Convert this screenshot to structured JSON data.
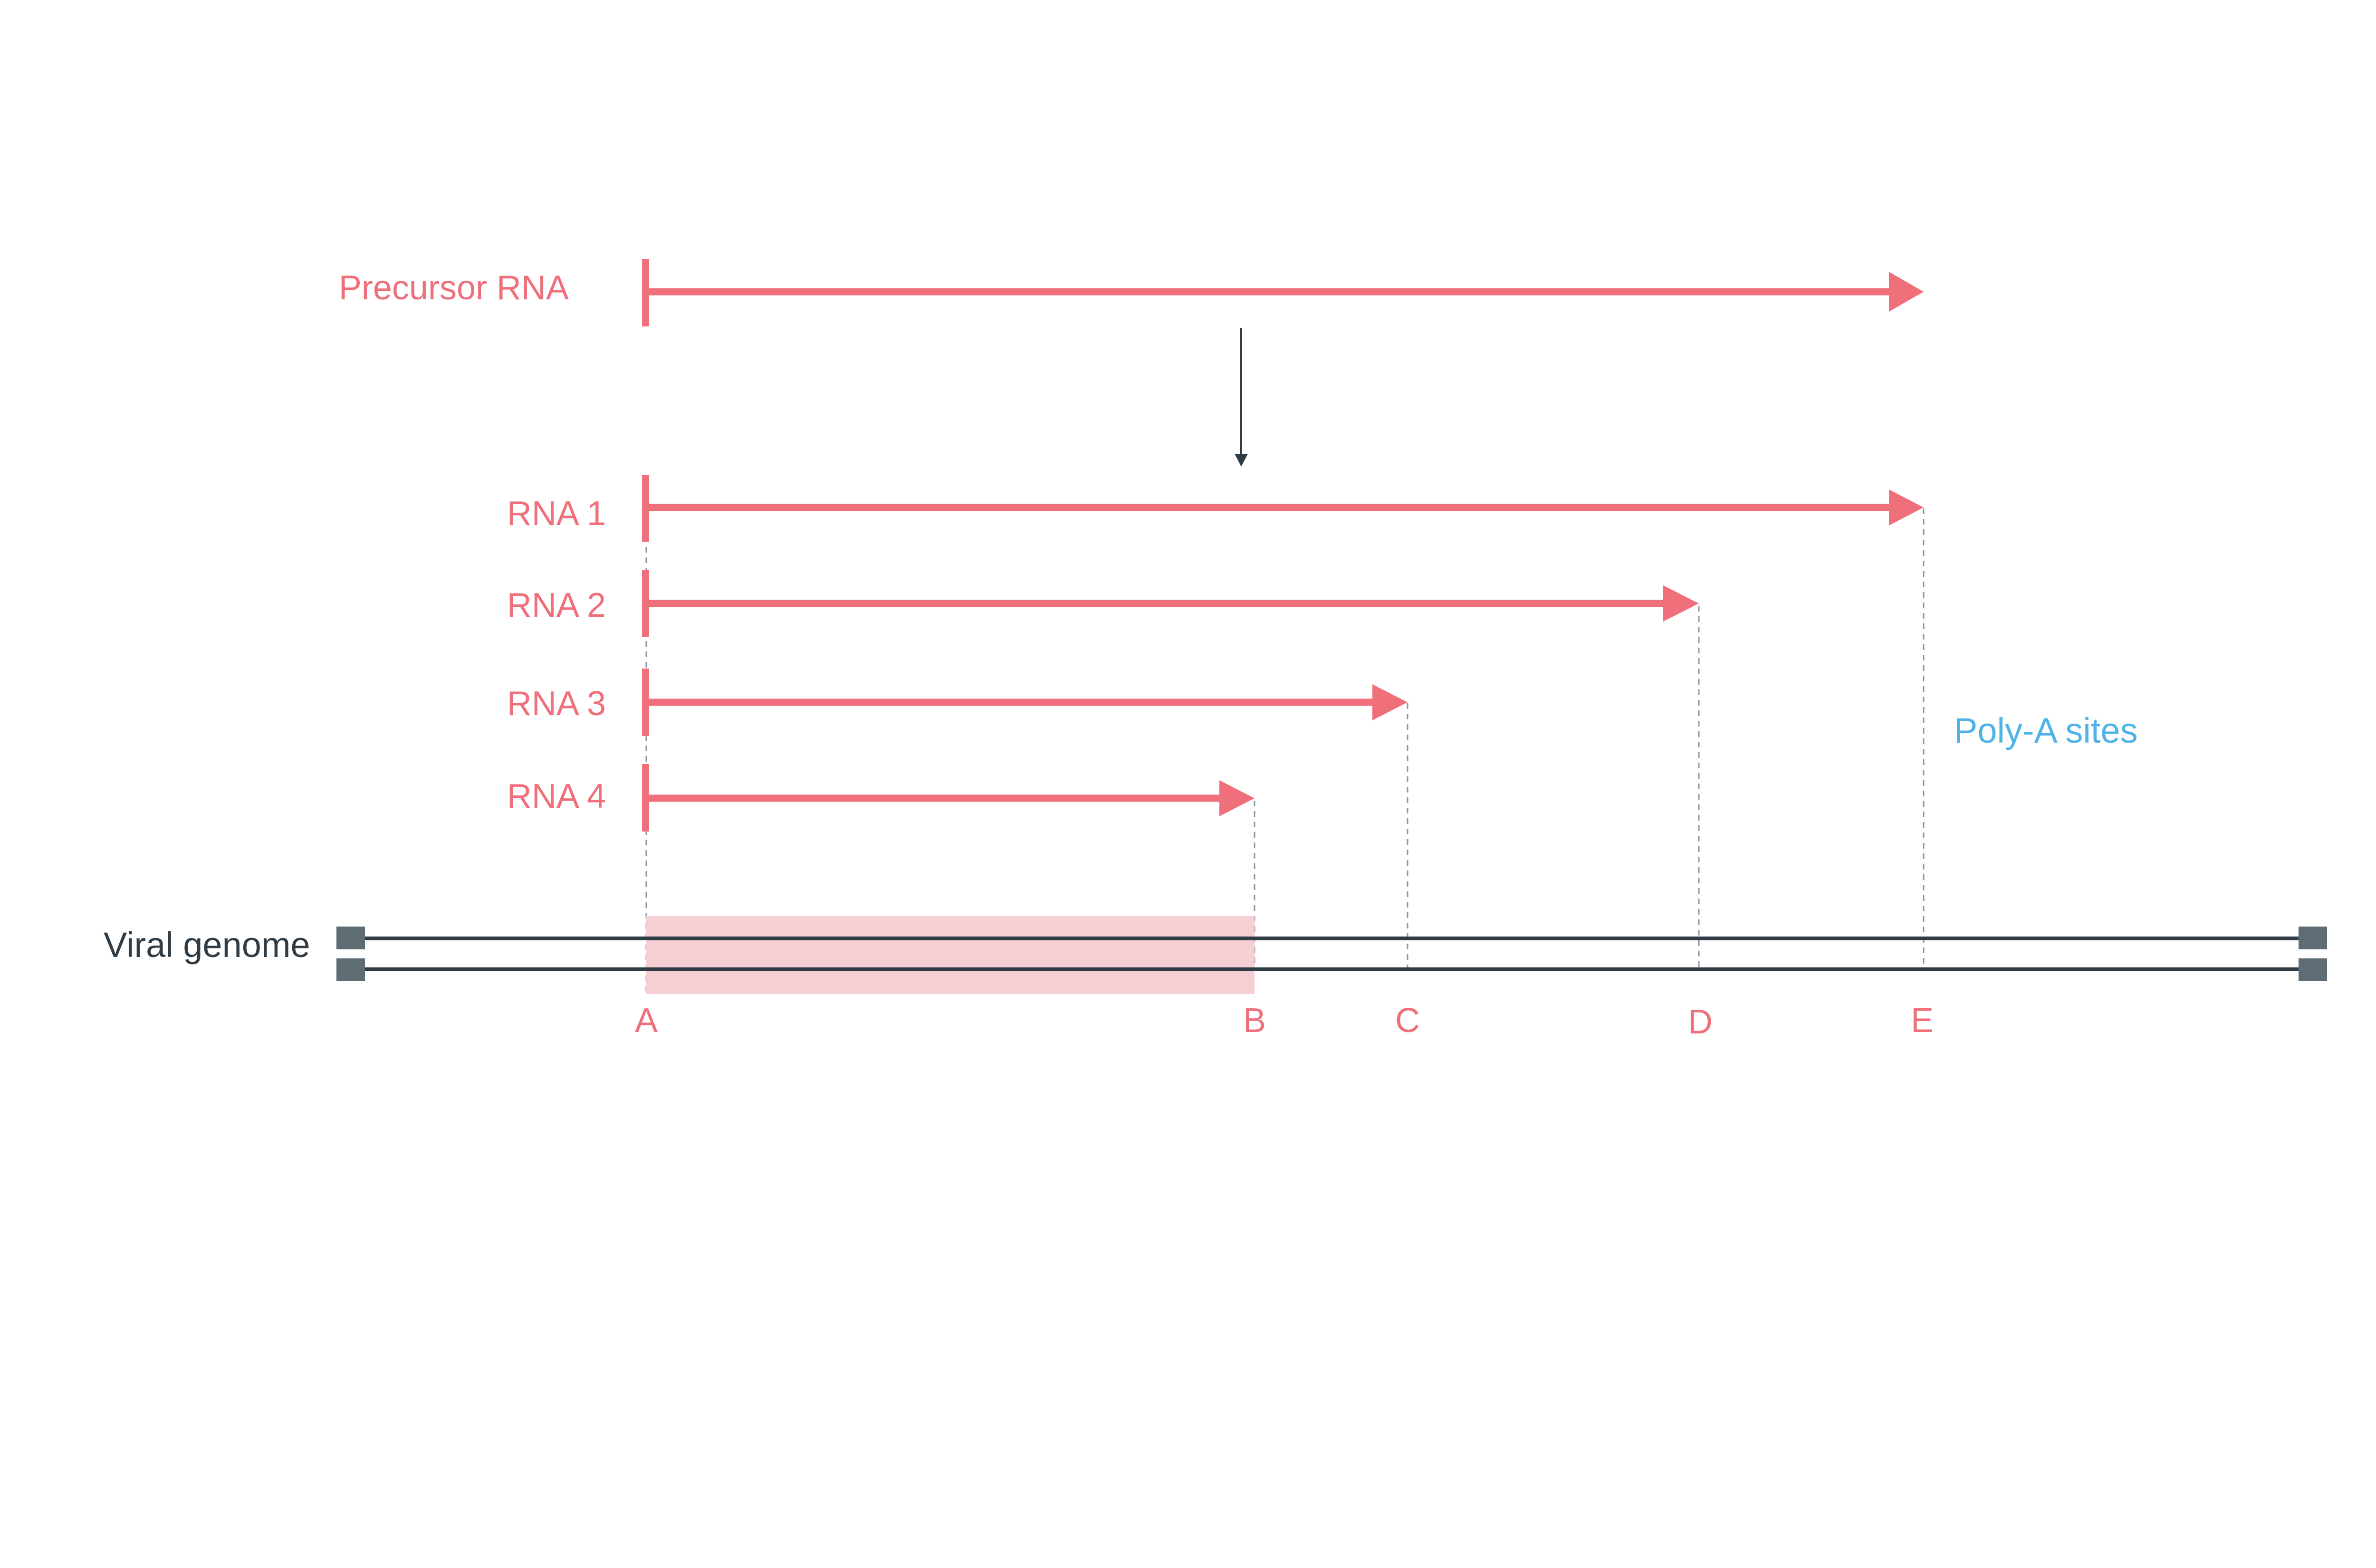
{
  "diagram": {
    "colors": {
      "rna": "#ef6f7b",
      "genome": "#2f3c46",
      "genome_end_cap": "#5e6c74",
      "highlight": "#f6cfd4",
      "polya": "#4fb3e8",
      "guide": "#8d96a0",
      "process_arrow": "#2f3c46"
    },
    "precursor": {
      "label": "Precursor RNA",
      "start_site": "A",
      "end_site": "E"
    },
    "transcripts": [
      {
        "label": "RNA 1",
        "start_site": "A",
        "end_site": "E"
      },
      {
        "label": "RNA 2",
        "start_site": "A",
        "end_site": "D"
      },
      {
        "label": "RNA 3",
        "start_site": "A",
        "end_site": "C"
      },
      {
        "label": "RNA 4",
        "start_site": "A",
        "end_site": "B"
      }
    ],
    "genome": {
      "label": "Viral genome",
      "highlight": {
        "from": "A",
        "to": "B"
      }
    },
    "sites": [
      "A",
      "B",
      "C",
      "D",
      "E"
    ],
    "polya_label": "Poly-A sites",
    "polya_sites": [
      "B",
      "C",
      "D",
      "E"
    ]
  }
}
